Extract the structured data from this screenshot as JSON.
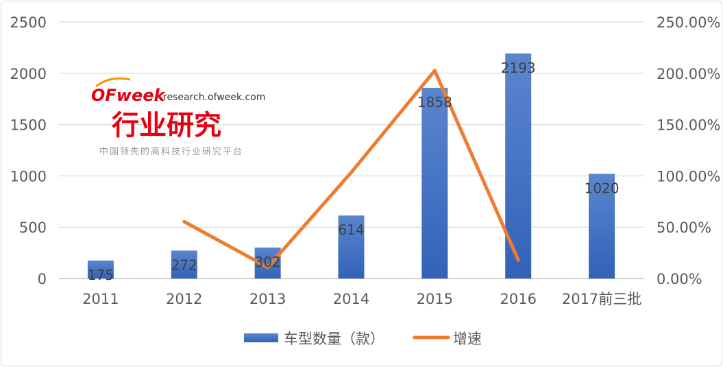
{
  "chart_data": {
    "type": "bar+line",
    "categories": [
      "2011",
      "2012",
      "2013",
      "2014",
      "2015",
      "2016",
      "2017前三批"
    ],
    "series": [
      {
        "name": "车型数量（款）",
        "type": "bar",
        "axis": "left",
        "color": "#4472C4",
        "values": [
          175,
          272,
          302,
          614,
          1858,
          2193,
          1020
        ],
        "labels": [
          "175",
          "272",
          "302",
          "614",
          "1858",
          "2193",
          "1020"
        ]
      },
      {
        "name": "增速",
        "type": "line",
        "axis": "right",
        "color": "#ED7D31",
        "values": [
          null,
          55.4,
          11.0,
          103.3,
          202.6,
          18.0,
          null
        ]
      }
    ],
    "y_left": {
      "range": [
        0,
        2500
      ],
      "ticks": [
        "0",
        "500",
        "1000",
        "1500",
        "2000",
        "2500"
      ]
    },
    "y_right": {
      "range": [
        0,
        250
      ],
      "ticks": [
        "0.00%",
        "50.00%",
        "100.00%",
        "150.00%",
        "200.00%",
        "250.00%"
      ]
    },
    "grid": "horizontal",
    "legend": "bottom"
  },
  "watermark": {
    "brand": "OFweek",
    "url": "research.ofweek.com",
    "title": "行业研究",
    "tagline": "中国领先的高科技行业研究平台"
  }
}
